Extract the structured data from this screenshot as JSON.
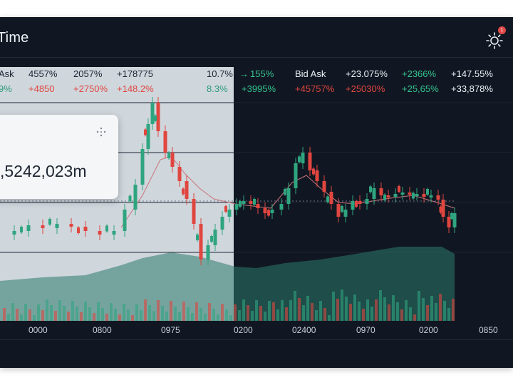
{
  "header": {
    "title": "Time",
    "notification_count": "1"
  },
  "stats": {
    "row1": {
      "label_left": "Ask",
      "v1": "4557%",
      "v2": "2057%",
      "v3": "+178775",
      "v4": "10.7%",
      "v5": "155%",
      "label_right": "Bid Ask",
      "v6": "+23.075%",
      "v7": "+2366%",
      "v8": "+147.55%"
    },
    "row2": {
      "v0": "9%",
      "v1": "+4850",
      "v2": "+2750%",
      "v3": "+148.2%",
      "v4": "8.3%",
      "v5": "+3995%",
      "v6": "+45757%",
      "v7": "+25030%",
      "v8": "+25,65%",
      "v9": "+33,878%"
    }
  },
  "tooltip": {
    "value": ",5242,023m"
  },
  "x_axis": [
    "0000",
    "0800",
    "0975",
    "0200",
    "02400",
    "0970",
    "0200",
    "0850"
  ],
  "colors": {
    "up": "#2fa57f",
    "down": "#e0463f",
    "light_panel": "#cfd6dc",
    "background": "#111722"
  }
}
